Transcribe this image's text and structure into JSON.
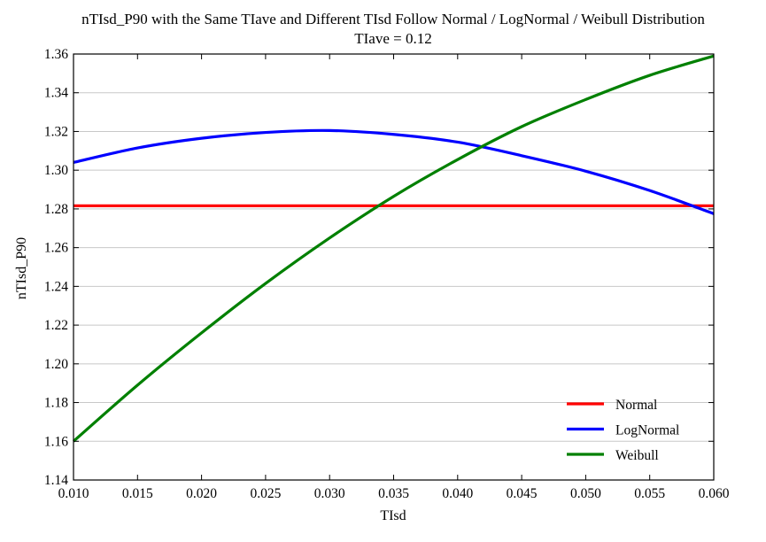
{
  "chart_data": {
    "type": "line",
    "title": "nTIsd_P90 with the Same TIave and Different TIsd Follow Normal / LogNormal / Weibull Distribution",
    "subtitle": "TIave = 0.12",
    "xlabel": "TIsd",
    "ylabel": "nTIsd_P90",
    "xlim": [
      0.01,
      0.06
    ],
    "ylim": [
      1.14,
      1.36
    ],
    "xticks": [
      "0.010",
      "0.015",
      "0.020",
      "0.025",
      "0.030",
      "0.035",
      "0.040",
      "0.045",
      "0.050",
      "0.055",
      "0.060"
    ],
    "yticks": [
      "1.14",
      "1.16",
      "1.18",
      "1.20",
      "1.22",
      "1.24",
      "1.26",
      "1.28",
      "1.30",
      "1.32",
      "1.34",
      "1.36"
    ],
    "grid": "horizontal",
    "legend_position": "bottom-right",
    "series": [
      {
        "name": "Normal",
        "color": "#ff0000",
        "x": [
          0.01,
          0.015,
          0.02,
          0.025,
          0.03,
          0.035,
          0.04,
          0.045,
          0.05,
          0.055,
          0.06
        ],
        "y": [
          1.2816,
          1.2816,
          1.2816,
          1.2816,
          1.2816,
          1.2816,
          1.2816,
          1.2816,
          1.2816,
          1.2816,
          1.2816
        ]
      },
      {
        "name": "LogNormal",
        "color": "#0000ff",
        "x": [
          0.01,
          0.015,
          0.02,
          0.025,
          0.03,
          0.035,
          0.04,
          0.045,
          0.05,
          0.055,
          0.06
        ],
        "y": [
          1.304,
          1.3115,
          1.3165,
          1.3195,
          1.3205,
          1.3185,
          1.3145,
          1.3075,
          1.2995,
          1.2895,
          1.2775
        ]
      },
      {
        "name": "Weibull",
        "color": "#008000",
        "x": [
          0.01,
          0.015,
          0.02,
          0.025,
          0.03,
          0.035,
          0.04,
          0.045,
          0.05,
          0.055,
          0.06
        ],
        "y": [
          1.16,
          1.189,
          1.216,
          1.2415,
          1.265,
          1.2865,
          1.3055,
          1.3225,
          1.3365,
          1.349,
          1.359
        ]
      }
    ]
  }
}
